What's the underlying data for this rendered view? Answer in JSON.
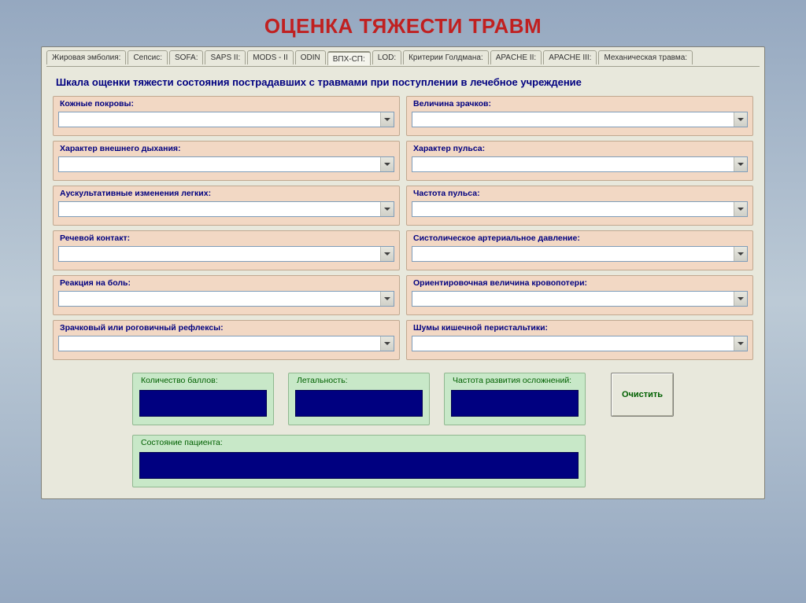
{
  "page_title": "ОЦЕНКА ТЯЖЕСТИ ТРАВМ",
  "colors": {
    "title": "#c02020",
    "bg_gradient_top": "#95a8c0",
    "bg_gradient_mid": "#bccad6",
    "window_bg": "#e8e8dc",
    "field_bg": "#f2d8c4",
    "field_label": "#000080",
    "result_bg": "#c8e8c8",
    "result_label": "#006000",
    "result_value_bg": "#000080",
    "subtitle": "#000080"
  },
  "tabs": [
    {
      "label": "Жировая эмболия:",
      "active": false
    },
    {
      "label": "Сепсис:",
      "active": false
    },
    {
      "label": "SOFA:",
      "active": false
    },
    {
      "label": "SAPS II:",
      "active": false
    },
    {
      "label": "MODS - II",
      "active": false
    },
    {
      "label": "ODIN",
      "active": false
    },
    {
      "label": "ВПХ-СП:",
      "active": true
    },
    {
      "label": "LOD:",
      "active": false
    },
    {
      "label": "Критерии Голдмана:",
      "active": false
    },
    {
      "label": "APACHE II:",
      "active": false
    },
    {
      "label": "APACHE III:",
      "active": false
    },
    {
      "label": "Механическая травма:",
      "active": false
    }
  ],
  "subtitle": "Шкала ощенки тяжести состояния пострадавших с травмами при поступлении в лечебное учреждение",
  "fields": {
    "left": [
      {
        "label": "Кожные покровы:",
        "value": ""
      },
      {
        "label": "Характер внешнего дыхания:",
        "value": ""
      },
      {
        "label": "Аускультативные изменения легких:",
        "value": ""
      },
      {
        "label": "Речевой контакт:",
        "value": ""
      },
      {
        "label": "Реакция на боль:",
        "value": ""
      },
      {
        "label": "Зрачковый или роговичный рефлексы:",
        "value": ""
      }
    ],
    "right": [
      {
        "label": "Величина зрачков:",
        "value": ""
      },
      {
        "label": "Характер пульса:",
        "value": ""
      },
      {
        "label": "Частота пульса:",
        "value": ""
      },
      {
        "label": "Систолическое артериальное давление:",
        "value": ""
      },
      {
        "label": "Ориентировочная величина кровопотери:",
        "value": ""
      },
      {
        "label": "Шумы кишечной перистальтики:",
        "value": ""
      }
    ]
  },
  "results": {
    "score": {
      "label": "Количество баллов:",
      "value": ""
    },
    "lethality": {
      "label": "Летальность:",
      "value": ""
    },
    "complications": {
      "label": "Частота развития осложнений:",
      "value": ""
    },
    "state": {
      "label": "Состояние пациента:",
      "value": ""
    }
  },
  "clear_button": "Очистить"
}
